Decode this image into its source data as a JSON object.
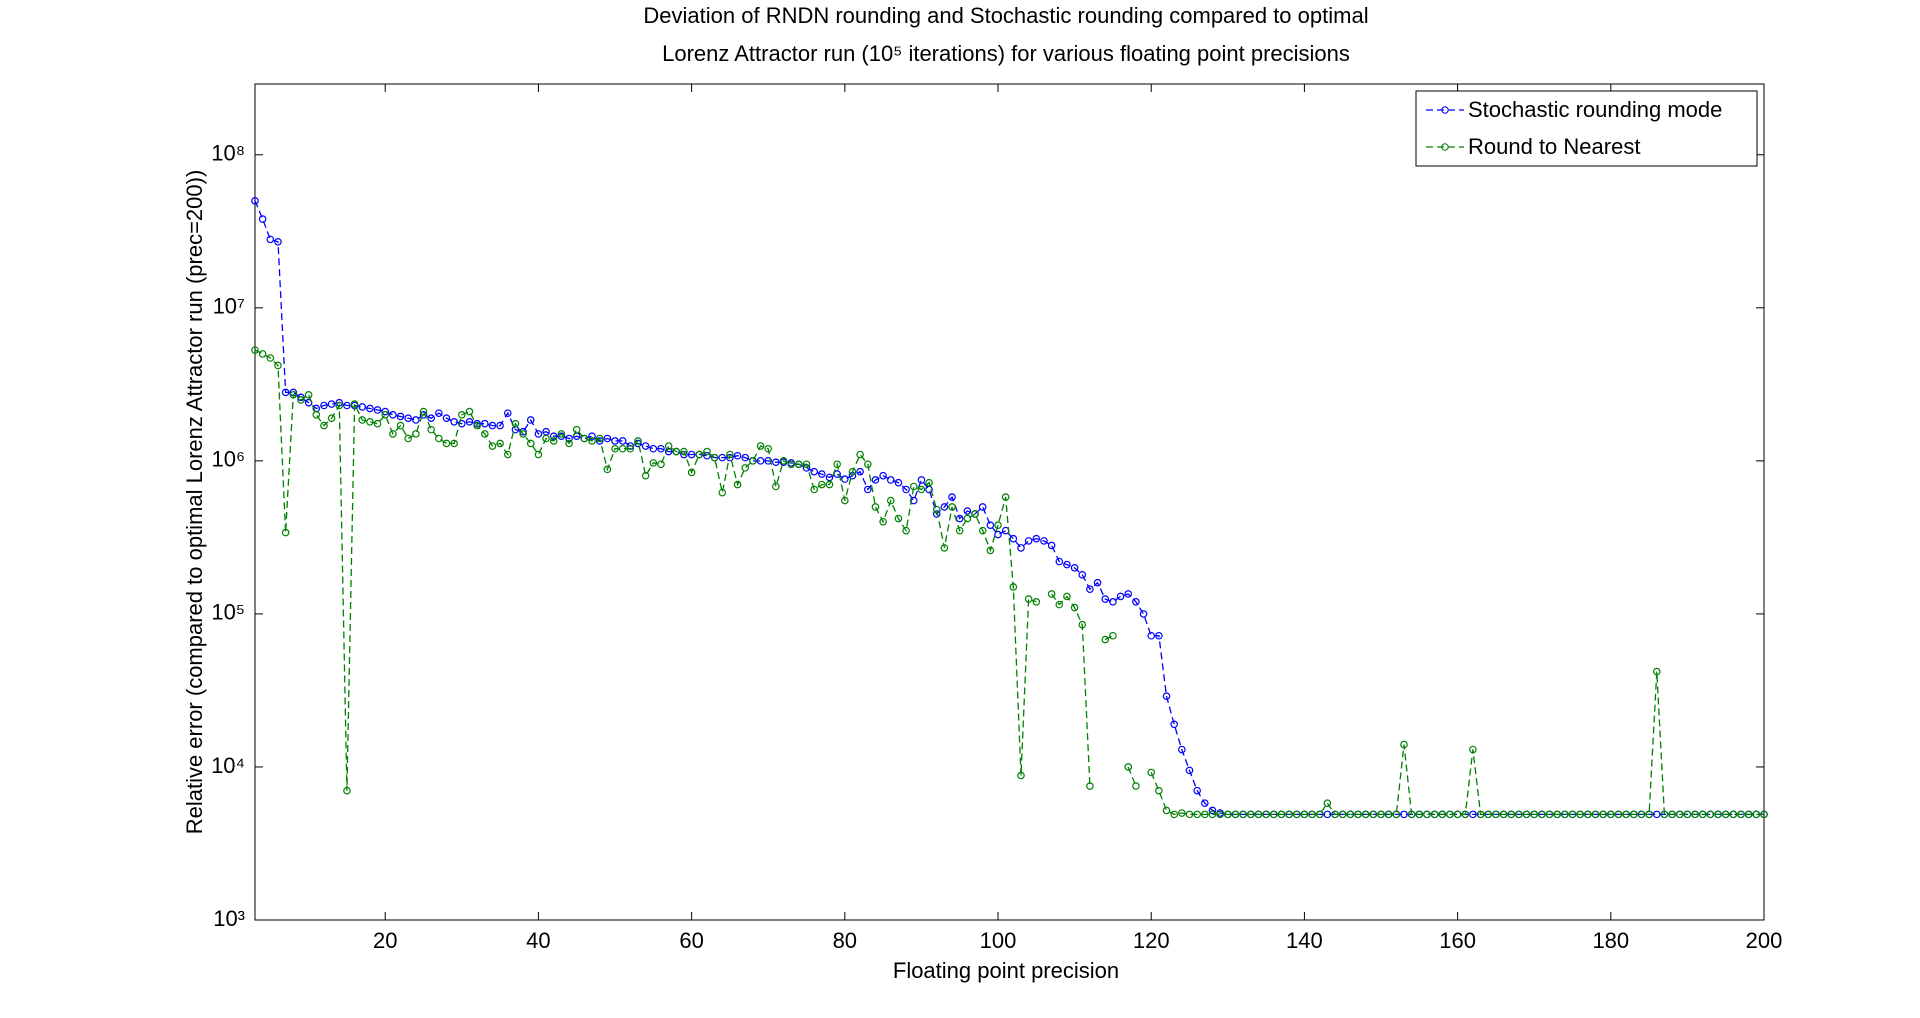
{
  "chart_data": {
    "type": "line",
    "title": "Deviation of RNDN rounding and Stochastic rounding compared to optimal",
    "subtitle": "Lorenz Attractor run (10⁵ iterations) for various floating point precisions",
    "x_label": "Floating point precision",
    "y_label": "Relative error (compared to optimal Lorenz Attractor run (prec=200))",
    "log_y": true,
    "legend": "upper right",
    "xlim": [
      3,
      200
    ],
    "ylim": [
      1000,
      290000000
    ],
    "xticks": [
      20,
      40,
      60,
      80,
      100,
      120,
      140,
      160,
      180,
      200
    ],
    "yticks": [
      {
        "value": 1000,
        "label": "10³"
      },
      {
        "value": 10000,
        "label": "10⁴"
      },
      {
        "value": 100000,
        "label": "10⁵"
      },
      {
        "value": 1000000,
        "label": "10⁶"
      },
      {
        "value": 10000000,
        "label": "10⁷"
      },
      {
        "value": 100000000,
        "label": "10⁸"
      }
    ],
    "x": [
      3,
      4,
      5,
      6,
      7,
      8,
      9,
      10,
      11,
      12,
      13,
      14,
      15,
      16,
      17,
      18,
      19,
      20,
      21,
      22,
      23,
      24,
      25,
      26,
      27,
      28,
      29,
      30,
      31,
      32,
      33,
      34,
      35,
      36,
      37,
      38,
      39,
      40,
      41,
      42,
      43,
      44,
      45,
      46,
      47,
      48,
      49,
      50,
      51,
      52,
      53,
      54,
      55,
      56,
      57,
      58,
      59,
      60,
      61,
      62,
      63,
      64,
      65,
      66,
      67,
      68,
      69,
      70,
      71,
      72,
      73,
      74,
      75,
      76,
      77,
      78,
      79,
      80,
      81,
      82,
      83,
      84,
      85,
      86,
      87,
      88,
      89,
      90,
      91,
      92,
      93,
      94,
      95,
      96,
      97,
      98,
      99,
      100,
      101,
      102,
      103,
      104,
      105,
      106,
      107,
      108,
      109,
      110,
      111,
      112,
      113,
      114,
      115,
      116,
      117,
      118,
      119,
      120,
      121,
      122,
      123,
      124,
      125,
      126,
      127,
      128,
      129,
      130,
      131,
      132,
      133,
      134,
      135,
      136,
      137,
      138,
      139,
      140,
      141,
      142,
      143,
      144,
      145,
      146,
      147,
      148,
      149,
      150,
      151,
      152,
      153,
      154,
      155,
      156,
      157,
      158,
      159,
      160,
      161,
      162,
      163,
      164,
      165,
      166,
      167,
      168,
      169,
      170,
      171,
      172,
      173,
      174,
      175,
      176,
      177,
      178,
      179,
      180,
      181,
      182,
      183,
      184,
      185,
      186,
      187,
      188,
      189,
      190,
      191,
      192,
      193,
      194,
      195,
      196,
      197,
      198,
      199,
      200
    ],
    "series": [
      {
        "name": "Stochastic rounding mode",
        "color": "#0000ff",
        "values": [
          50000000,
          38000000,
          28000000,
          27000000,
          2800000,
          2800000,
          2600000,
          2400000,
          2200000,
          2300000,
          2350000,
          2400000,
          2300000,
          2300000,
          2250000,
          2200000,
          2150000,
          2100000,
          2000000,
          1950000,
          1900000,
          1850000,
          2000000,
          1900000,
          2050000,
          1900000,
          1800000,
          1750000,
          1800000,
          1750000,
          1750000,
          1700000,
          1700000,
          2050000,
          1600000,
          1550000,
          1850000,
          1500000,
          1550000,
          1450000,
          1450000,
          1400000,
          1450000,
          1400000,
          1450000,
          1350000,
          1400000,
          1350000,
          1350000,
          1250000,
          1300000,
          1250000,
          1200000,
          1200000,
          1150000,
          1150000,
          1100000,
          1100000,
          1100000,
          1080000,
          1050000,
          1050000,
          1050000,
          1080000,
          1050000,
          1000000,
          1000000,
          1000000,
          980000,
          980000,
          970000,
          950000,
          900000,
          850000,
          820000,
          780000,
          820000,
          760000,
          800000,
          850000,
          650000,
          750000,
          800000,
          750000,
          720000,
          650000,
          550000,
          750000,
          650000,
          450000,
          500000,
          580000,
          420000,
          470000,
          450000,
          500000,
          380000,
          330000,
          350000,
          310000,
          270000,
          300000,
          310000,
          300000,
          280000,
          220000,
          210000,
          200000,
          180000,
          145000,
          160000,
          125000,
          120000,
          130000,
          135000,
          120000,
          100000,
          72000,
          72000,
          29000,
          19000,
          13000,
          9500,
          7000,
          5800,
          5200,
          5000,
          4900,
          4900,
          4900,
          4900,
          4900,
          4900,
          4900,
          4900,
          4900,
          4900,
          4900,
          4900,
          4900,
          4900,
          4900,
          4900,
          4900,
          4900,
          4900,
          4900,
          4900,
          4900,
          4900,
          4900,
          4900,
          4900,
          4900,
          4900,
          4900,
          4900,
          4900,
          4900,
          4900,
          4900,
          4900,
          4900,
          4900,
          4900,
          4900,
          4900,
          4900,
          4900,
          4900,
          4900,
          4900,
          4900,
          4900,
          4900,
          4900,
          4900,
          4900,
          4900,
          4900,
          4900,
          4900,
          4900,
          4900,
          4900,
          4900,
          4900,
          4900,
          4900,
          4900,
          4900,
          4900,
          4900,
          4900,
          4900,
          4900,
          4900,
          4900
        ]
      },
      {
        "name": "Round to Nearest",
        "color": "#008000",
        "values": [
          5300000,
          5000000,
          4700000,
          4200000,
          340000,
          2700000,
          2500000,
          2700000,
          2000000,
          1700000,
          1900000,
          2300000,
          7000,
          2350000,
          1850000,
          1800000,
          1750000,
          2000000,
          1500000,
          1700000,
          1400000,
          1500000,
          2100000,
          1600000,
          1400000,
          1300000,
          1300000,
          2000000,
          2100000,
          1700000,
          1500000,
          1250000,
          1300000,
          1100000,
          1750000,
          1500000,
          1300000,
          1100000,
          1400000,
          1350000,
          1500000,
          1300000,
          1600000,
          1400000,
          1350000,
          1400000,
          880000,
          1200000,
          1200000,
          1200000,
          1350000,
          800000,
          970000,
          950000,
          1250000,
          1150000,
          1150000,
          840000,
          1100000,
          1150000,
          1050000,
          620000,
          1100000,
          700000,
          900000,
          1000000,
          1250000,
          1200000,
          680000,
          1000000,
          950000,
          950000,
          950000,
          650000,
          700000,
          700000,
          950000,
          550000,
          850000,
          1100000,
          950000,
          500000,
          400000,
          550000,
          420000,
          350000,
          680000,
          650000,
          720000,
          480000,
          270000,
          500000,
          350000,
          420000,
          450000,
          350000,
          260000,
          380000,
          580000,
          150000,
          8800,
          125000,
          120000,
          null,
          135000,
          115000,
          130000,
          110000,
          85000,
          7500,
          null,
          68000,
          72000,
          null,
          10000,
          7500,
          null,
          9200,
          7000,
          5200,
          4900,
          5000,
          4900,
          4900,
          4900,
          4900,
          4900,
          4900,
          4900,
          4900,
          4900,
          4900,
          4900,
          4900,
          4900,
          4900,
          4900,
          4900,
          4900,
          4900,
          5800,
          4900,
          4900,
          4900,
          4900,
          4900,
          4900,
          4900,
          4900,
          4900,
          14000,
          4900,
          4900,
          4900,
          4900,
          4900,
          4900,
          4900,
          4900,
          13000,
          4900,
          4900,
          4900,
          4900,
          4900,
          4900,
          4900,
          4900,
          4900,
          4900,
          4900,
          4900,
          4900,
          4900,
          4900,
          4900,
          4900,
          4900,
          4900,
          4900,
          4900,
          4900,
          4900,
          42000,
          4900,
          4900,
          4900,
          4900,
          4900,
          4900,
          4900,
          4900,
          4900,
          4900,
          4900,
          4900,
          4900,
          4900
        ]
      }
    ]
  }
}
